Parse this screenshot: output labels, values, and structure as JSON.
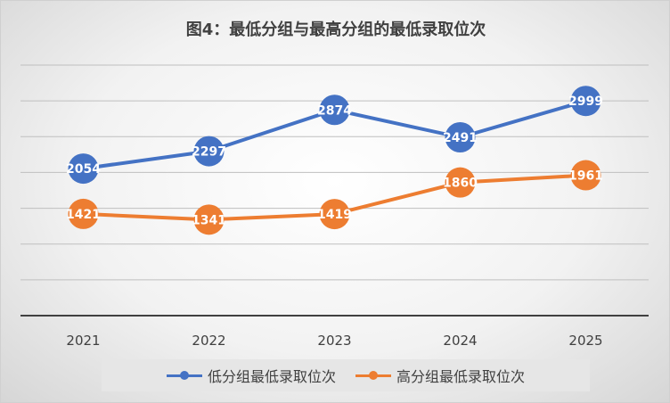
{
  "colors": {
    "series_low": "#4472C4",
    "series_high": "#ED7D31",
    "axis": "#404040",
    "grid": "#bfbfbf"
  },
  "chart_data": {
    "type": "line",
    "title": "图4：最低分组与最高分组的最低录取位次",
    "xlabel": "",
    "ylabel": "",
    "categories": [
      "2021",
      "2022",
      "2023",
      "2024",
      "2025"
    ],
    "ylim": [
      0,
      3500
    ],
    "grid": true,
    "legend_position": "bottom",
    "series": [
      {
        "name": "低分组最低录取位次",
        "values": [
          2054,
          2297,
          2874,
          2491,
          2999
        ],
        "color": "#4472C4"
      },
      {
        "name": "高分组最低录取位次",
        "values": [
          1421,
          1341,
          1419,
          1860,
          1961
        ],
        "color": "#ED7D31"
      }
    ]
  }
}
